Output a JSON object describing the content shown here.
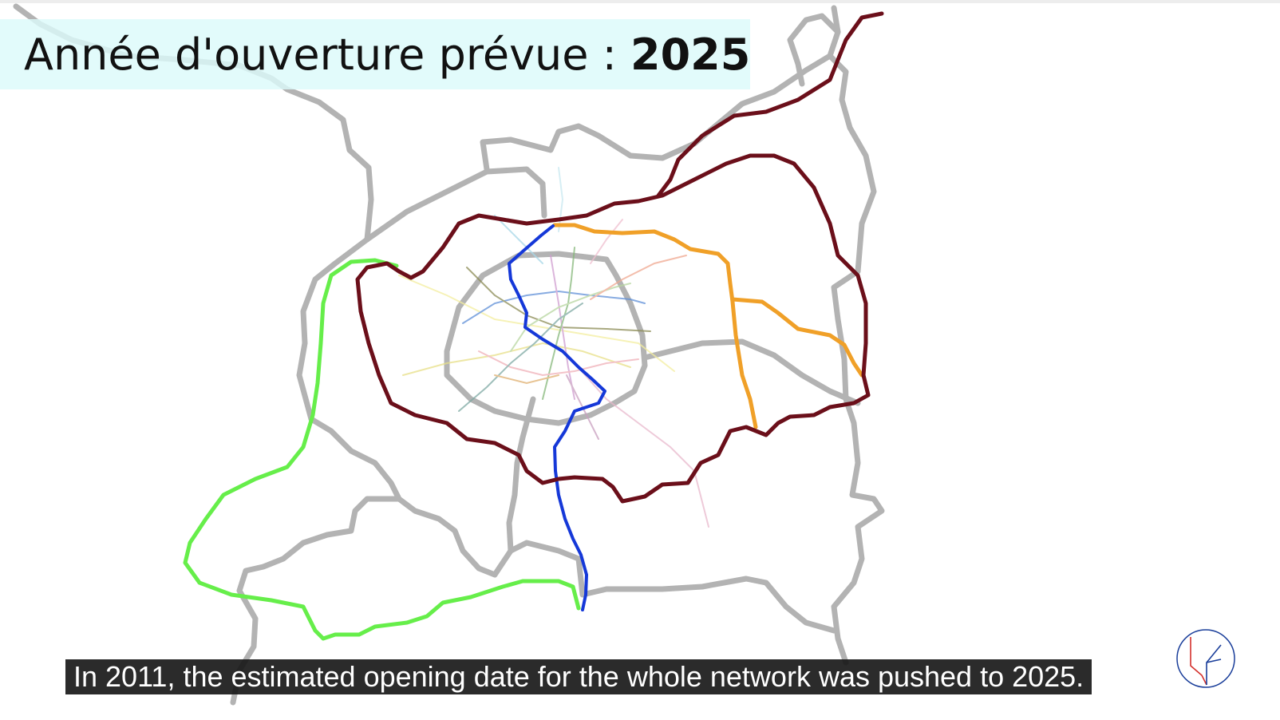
{
  "title": {
    "label": "Année d'ouverture prévue :",
    "year": "2025"
  },
  "caption": {
    "text": "In 2011, the estimated opening date for the whole network was pushed to 2025."
  },
  "map": {
    "description_colors": {
      "department_borders": "#b3b3b3",
      "line_15": "#6b0f1a",
      "line_14": "#1538d8",
      "line_16_17": "#f0a028",
      "line_18": "#66ee4a"
    }
  },
  "logo": {
    "icon": "channel-logo-icon"
  }
}
